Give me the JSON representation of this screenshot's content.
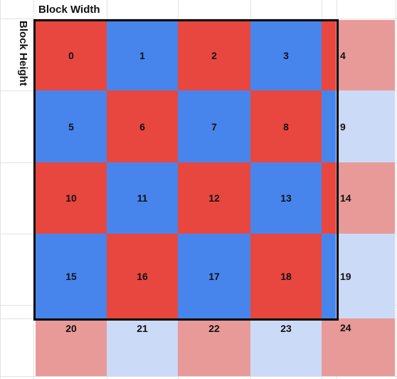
{
  "labels": {
    "block_width": "Block Width",
    "block_height": "Block Height"
  },
  "colors": {
    "red": "#e8473f",
    "blue": "#4785ed",
    "light_red": "#e89a99",
    "light_blue": "#cbdaf7"
  },
  "cells": [
    {
      "label": "0",
      "color": "red",
      "in_block": true
    },
    {
      "label": "1",
      "color": "blue",
      "in_block": true
    },
    {
      "label": "2",
      "color": "red",
      "in_block": true
    },
    {
      "label": "3",
      "color": "blue",
      "in_block": true
    },
    {
      "label": "4",
      "color": "red",
      "in_block": false
    },
    {
      "label": "5",
      "color": "blue",
      "in_block": true
    },
    {
      "label": "6",
      "color": "red",
      "in_block": true
    },
    {
      "label": "7",
      "color": "blue",
      "in_block": true
    },
    {
      "label": "8",
      "color": "red",
      "in_block": true
    },
    {
      "label": "9",
      "color": "blue",
      "in_block": false
    },
    {
      "label": "10",
      "color": "red",
      "in_block": true
    },
    {
      "label": "11",
      "color": "blue",
      "in_block": true
    },
    {
      "label": "12",
      "color": "red",
      "in_block": true
    },
    {
      "label": "13",
      "color": "blue",
      "in_block": true
    },
    {
      "label": "14",
      "color": "red",
      "in_block": false
    },
    {
      "label": "15",
      "color": "blue",
      "in_block": true
    },
    {
      "label": "16",
      "color": "red",
      "in_block": true
    },
    {
      "label": "17",
      "color": "blue",
      "in_block": true
    },
    {
      "label": "18",
      "color": "red",
      "in_block": true
    },
    {
      "label": "19",
      "color": "blue",
      "in_block": false
    },
    {
      "label": "20",
      "color": "red",
      "in_block": false
    },
    {
      "label": "21",
      "color": "blue",
      "in_block": false
    },
    {
      "label": "22",
      "color": "red",
      "in_block": false
    },
    {
      "label": "23",
      "color": "blue",
      "in_block": false
    },
    {
      "label": "24",
      "color": "red",
      "in_block": false
    }
  ]
}
